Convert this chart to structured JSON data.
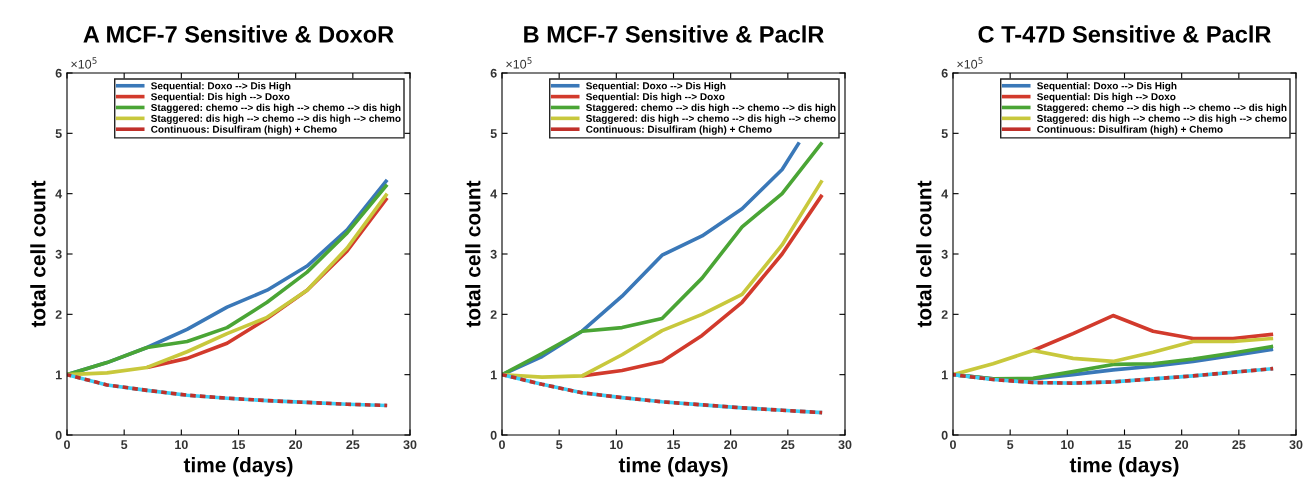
{
  "chart_data": [
    {
      "type": "line",
      "title": "A MCF-7 Sensitive & DoxoR",
      "xlabel": "time (days)",
      "ylabel": "total cell count",
      "annotations": [
        "×10$^{5}$"
      ],
      "xlim": [
        0,
        30
      ],
      "ylim": [
        0,
        6
      ],
      "xticks": [
        0,
        5,
        10,
        15,
        20,
        25,
        30
      ],
      "yticks": [
        0,
        1,
        2,
        3,
        4,
        5,
        6
      ],
      "legend": "top right",
      "grid": false,
      "line_style": "solid",
      "marker": "none",
      "series": [
        {
          "name": "Sequential: Doxo --> Dis High",
          "color": "#3a78b8",
          "x": [
            0,
            3.5,
            7,
            10.5,
            14,
            17.5,
            21,
            24.5,
            28
          ],
          "values": [
            1.0,
            1.2,
            1.45,
            1.75,
            2.12,
            2.4,
            2.8,
            3.4,
            4.23
          ]
        },
        {
          "name": "Sequential: Dis high --> Doxo",
          "color": "#d23a2c",
          "x": [
            7,
            10.5,
            14,
            17.5,
            21,
            24.5,
            28
          ],
          "values": [
            1.12,
            1.27,
            1.52,
            1.93,
            2.4,
            3.05,
            3.93
          ]
        },
        {
          "name": "Staggered: chemo --> dis high --> chemo --> dis high",
          "color": "#4aa535",
          "x": [
            0,
            3.5,
            7,
            10.5,
            14,
            17.5,
            21,
            24.5,
            28
          ],
          "values": [
            1.0,
            1.2,
            1.45,
            1.55,
            1.78,
            2.2,
            2.7,
            3.35,
            4.15
          ]
        },
        {
          "name": "Staggered: dis high --> chemo --> dis high --> chemo",
          "color": "#c8c83c",
          "x": [
            0,
            3.5,
            7,
            10.5,
            14,
            17.5,
            21,
            24.5,
            28
          ],
          "values": [
            1.0,
            1.03,
            1.12,
            1.38,
            1.68,
            1.95,
            2.4,
            3.1,
            4.0
          ]
        },
        {
          "color": "#3ccff5",
          "x": [
            0,
            3.5,
            7,
            10.5,
            14,
            17.5,
            21,
            24.5,
            28
          ],
          "values": [
            1.0,
            0.83,
            0.74,
            0.66,
            0.61,
            0.57,
            0.54,
            0.51,
            0.49
          ]
        },
        {
          "name": "Continuous: Disulfiram (high) + Chemo",
          "color": "#c0302a",
          "line_style": "dashed",
          "x": [
            0,
            3.5,
            7,
            10.5,
            14,
            17.5,
            21,
            24.5,
            28
          ],
          "values": [
            1.0,
            0.83,
            0.74,
            0.66,
            0.61,
            0.57,
            0.54,
            0.51,
            0.49
          ]
        }
      ]
    },
    {
      "type": "line",
      "title": "B MCF-7 Sensitive & PaclR",
      "xlabel": "time (days)",
      "ylabel": "total cell count",
      "annotations": [
        "×10$^{5}$"
      ],
      "xlim": [
        0,
        30
      ],
      "ylim": [
        0,
        6
      ],
      "xticks": [
        0,
        5,
        10,
        15,
        20,
        25,
        30
      ],
      "yticks": [
        0,
        1,
        2,
        3,
        4,
        5,
        6
      ],
      "legend": "top right",
      "grid": false,
      "line_style": "solid",
      "marker": "none",
      "series": [
        {
          "name": "Sequential: Doxo --> Dis High",
          "color": "#3a78b8",
          "x": [
            0,
            3.5,
            7,
            10.5,
            14,
            17.5,
            21,
            24.5,
            26
          ],
          "values": [
            1.0,
            1.3,
            1.72,
            2.3,
            2.98,
            3.3,
            3.75,
            4.4,
            4.85
          ]
        },
        {
          "name": "Sequential: Dis high --> Doxo",
          "color": "#d23a2c",
          "x": [
            7,
            10.5,
            14,
            17.5,
            21,
            24.5,
            28
          ],
          "values": [
            0.98,
            1.07,
            1.22,
            1.65,
            2.2,
            3.0,
            3.98
          ]
        },
        {
          "name": "Staggered: chemo --> dis high --> chemo --> dis high",
          "color": "#4aa535",
          "x": [
            0,
            3.5,
            7,
            10.5,
            14,
            17.5,
            21,
            24.5,
            28
          ],
          "values": [
            1.0,
            1.35,
            1.72,
            1.78,
            1.93,
            2.6,
            3.45,
            4.0,
            4.85
          ]
        },
        {
          "name": "Staggered: dis high --> chemo --> dis high --> chemo",
          "color": "#c8c83c",
          "x": [
            0,
            3.5,
            7,
            10.5,
            14,
            17.5,
            21,
            24.5,
            28
          ],
          "values": [
            1.0,
            0.96,
            0.98,
            1.33,
            1.73,
            2.0,
            2.33,
            3.15,
            4.22
          ]
        },
        {
          "color": "#3ccff5",
          "x": [
            0,
            3.5,
            7,
            10.5,
            14,
            17.5,
            21,
            24.5,
            28
          ],
          "values": [
            1.0,
            0.84,
            0.7,
            0.62,
            0.55,
            0.5,
            0.45,
            0.41,
            0.37
          ]
        },
        {
          "name": "Continuous: Disulfiram (high) + Chemo",
          "color": "#c0302a",
          "line_style": "dashed",
          "x": [
            0,
            3.5,
            7,
            10.5,
            14,
            17.5,
            21,
            24.5,
            28
          ],
          "values": [
            1.0,
            0.84,
            0.7,
            0.62,
            0.55,
            0.5,
            0.45,
            0.41,
            0.37
          ]
        }
      ]
    },
    {
      "type": "line",
      "title": "C T-47D Sensitive & PaclR",
      "xlabel": "time (days)",
      "ylabel": "total cell count",
      "annotations": [
        "×10$^{5}$"
      ],
      "xlim": [
        0,
        30
      ],
      "ylim": [
        0,
        6
      ],
      "xticks": [
        0,
        5,
        10,
        15,
        20,
        25,
        30
      ],
      "yticks": [
        0,
        1,
        2,
        3,
        4,
        5,
        6
      ],
      "legend": "top right",
      "grid": false,
      "line_style": "solid",
      "marker": "none",
      "series": [
        {
          "name": "Sequential: Doxo --> Dis High",
          "color": "#3a78b8",
          "x": [
            0,
            3.5,
            7,
            10.5,
            14,
            17.5,
            21,
            24.5,
            28
          ],
          "values": [
            1.0,
            0.93,
            0.93,
            1.0,
            1.08,
            1.14,
            1.22,
            1.32,
            1.42
          ]
        },
        {
          "name": "Sequential: Dis high --> Doxo",
          "color": "#d23a2c",
          "x": [
            7,
            10.5,
            14,
            17.5,
            21,
            24.5,
            28
          ],
          "values": [
            1.4,
            1.68,
            1.98,
            1.72,
            1.6,
            1.6,
            1.67
          ]
        },
        {
          "name": "Staggered: chemo --> dis high --> chemo --> dis high",
          "color": "#4aa535",
          "x": [
            0,
            3.5,
            7,
            10.5,
            14,
            17.5,
            21,
            24.5,
            28
          ],
          "values": [
            1.0,
            0.93,
            0.94,
            1.05,
            1.17,
            1.18,
            1.26,
            1.36,
            1.47
          ]
        },
        {
          "name": "Staggered: dis high --> chemo --> dis high --> chemo",
          "color": "#c8c83c",
          "x": [
            0,
            3.5,
            7,
            10.5,
            14,
            17.5,
            21,
            24.5,
            28
          ],
          "values": [
            1.0,
            1.18,
            1.4,
            1.27,
            1.22,
            1.37,
            1.55,
            1.55,
            1.6
          ]
        },
        {
          "color": "#3ccff5",
          "x": [
            0,
            3.5,
            7,
            10.5,
            14,
            17.5,
            21,
            24.5,
            28
          ],
          "values": [
            1.0,
            0.92,
            0.87,
            0.86,
            0.88,
            0.93,
            0.98,
            1.04,
            1.1
          ]
        },
        {
          "name": "Continuous: Disulfiram (high) + Chemo",
          "color": "#c0302a",
          "line_style": "dashed",
          "x": [
            0,
            3.5,
            7,
            10.5,
            14,
            17.5,
            21,
            24.5,
            28
          ],
          "values": [
            1.0,
            0.92,
            0.87,
            0.86,
            0.88,
            0.93,
            0.98,
            1.04,
            1.1
          ]
        }
      ]
    }
  ]
}
